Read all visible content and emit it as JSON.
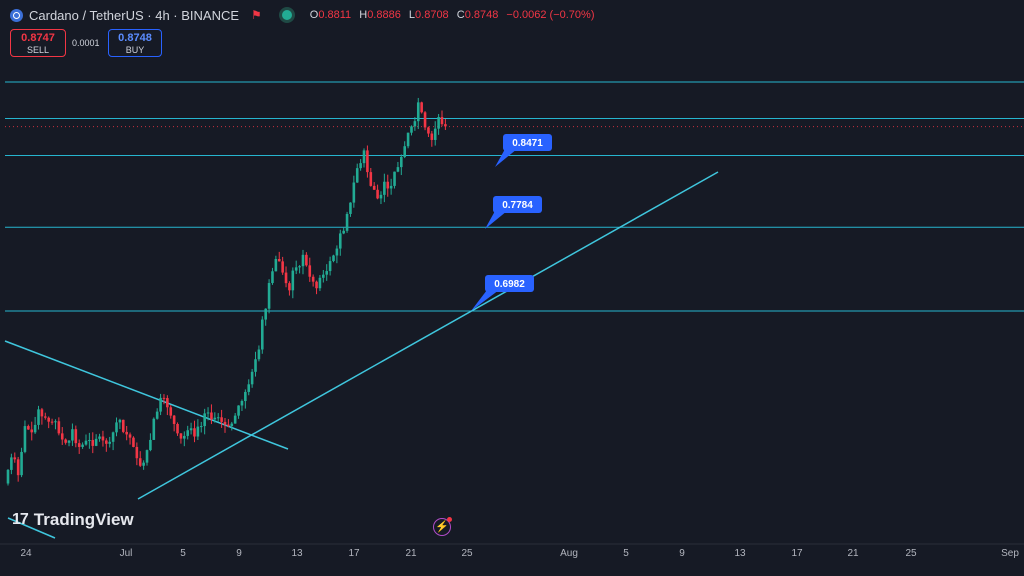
{
  "header": {
    "symbol": "Cardano / TetherUS · 4h · BINANCE",
    "ohlc": [
      {
        "key": "O",
        "value": "0.8811"
      },
      {
        "key": "H",
        "value": "0.8886"
      },
      {
        "key": "L",
        "value": "0.8708"
      },
      {
        "key": "C",
        "value": "0.8748"
      },
      {
        "key": "",
        "value": "−0.0062 (−0.70%)"
      }
    ],
    "colors": {
      "down": "#f23645",
      "up": "#22ab94"
    }
  },
  "trade": {
    "sell_price": "0.8747",
    "sell_label": "SELL",
    "spread": "0.0001",
    "buy_price": "0.8748",
    "buy_label": "BUY"
  },
  "branding": {
    "logo_text": "TradingView"
  },
  "chart_data": {
    "type": "candlestick",
    "timeframe": "4h",
    "x_ticks": [
      "24",
      "Jul",
      "5",
      "9",
      "13",
      "17",
      "21",
      "25",
      "Aug",
      "5",
      "9",
      "13",
      "17",
      "21",
      "25",
      "Sep"
    ],
    "price_markers": [
      0.8471,
      0.7784,
      0.6982
    ],
    "horizontal_levels": [
      0.9175,
      0.8825,
      0.8471,
      0.7784,
      0.6982
    ],
    "last_price": 0.8748,
    "ylim": [
      0.5,
      0.999
    ],
    "candles_close_path": [
      [
        0.533,
        0.558
      ],
      [
        0.558,
        0.541
      ],
      [
        0.541,
        0.588
      ],
      [
        0.588,
        0.582
      ],
      [
        0.582,
        0.604
      ],
      [
        0.604,
        0.596
      ],
      [
        0.596,
        0.592
      ],
      [
        0.592,
        0.581
      ],
      [
        0.581,
        0.572
      ],
      [
        0.572,
        0.585
      ],
      [
        0.585,
        0.568
      ],
      [
        0.568,
        0.574
      ],
      [
        0.574,
        0.569
      ],
      [
        0.569,
        0.578
      ],
      [
        0.578,
        0.571
      ],
      [
        0.571,
        0.582
      ],
      [
        0.582,
        0.594
      ],
      [
        0.594,
        0.58
      ],
      [
        0.58,
        0.568
      ],
      [
        0.568,
        0.55
      ],
      [
        0.55,
        0.565
      ],
      [
        0.565,
        0.595
      ],
      [
        0.595,
        0.615
      ],
      [
        0.615,
        0.606
      ],
      [
        0.606,
        0.59
      ],
      [
        0.59,
        0.576
      ],
      [
        0.576,
        0.584
      ],
      [
        0.584,
        0.578
      ],
      [
        0.578,
        0.588
      ],
      [
        0.588,
        0.601
      ],
      [
        0.601,
        0.596
      ],
      [
        0.596,
        0.592
      ],
      [
        0.592,
        0.588
      ],
      [
        0.588,
        0.598
      ],
      [
        0.598,
        0.612
      ],
      [
        0.612,
        0.628
      ],
      [
        0.628,
        0.652
      ],
      [
        0.652,
        0.69
      ],
      [
        0.69,
        0.725
      ],
      [
        0.725,
        0.748
      ],
      [
        0.748,
        0.735
      ],
      [
        0.735,
        0.718
      ],
      [
        0.718,
        0.74
      ],
      [
        0.74,
        0.752
      ],
      [
        0.752,
        0.731
      ],
      [
        0.731,
        0.72
      ],
      [
        0.72,
        0.733
      ],
      [
        0.733,
        0.746
      ],
      [
        0.746,
        0.758
      ],
      [
        0.758,
        0.775
      ],
      [
        0.775,
        0.802
      ],
      [
        0.802,
        0.835
      ],
      [
        0.835,
        0.852
      ],
      [
        0.852,
        0.818
      ],
      [
        0.818,
        0.806
      ],
      [
        0.806,
        0.822
      ],
      [
        0.822,
        0.818
      ],
      [
        0.818,
        0.836
      ],
      [
        0.836,
        0.856
      ],
      [
        0.856,
        0.875
      ],
      [
        0.875,
        0.898
      ],
      [
        0.898,
        0.874
      ],
      [
        0.874,
        0.862
      ],
      [
        0.862,
        0.884
      ],
      [
        0.884,
        0.875
      ]
    ]
  }
}
